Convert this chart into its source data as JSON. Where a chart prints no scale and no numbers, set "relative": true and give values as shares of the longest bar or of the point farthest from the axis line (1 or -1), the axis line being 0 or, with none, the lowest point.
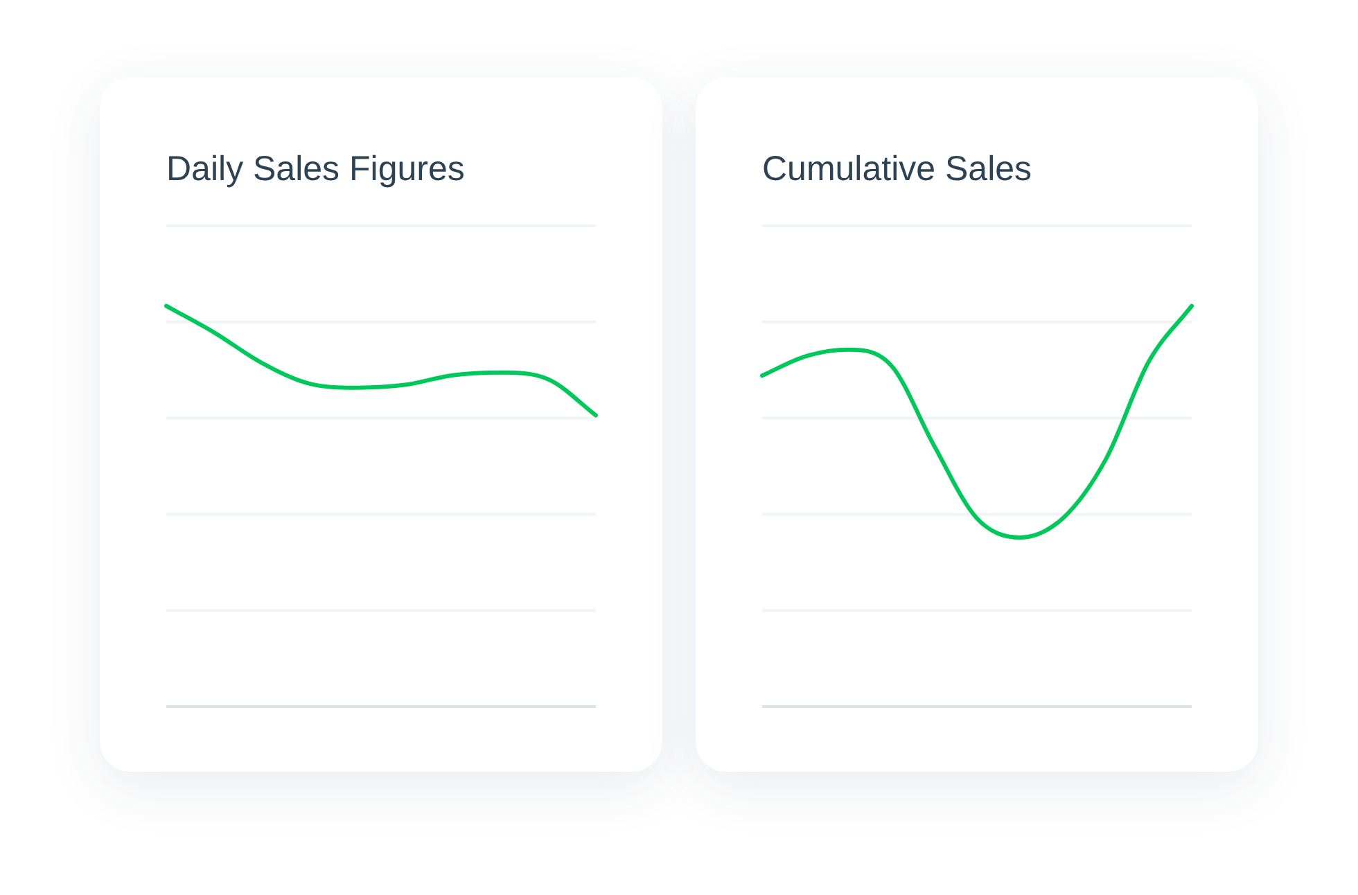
{
  "chart_data": [
    {
      "type": "line",
      "title": "Daily Sales Figures",
      "relative": true,
      "grid": true,
      "legend": false,
      "marker": "none",
      "line_style": "solid",
      "categories": [
        null,
        null,
        null,
        null,
        null,
        null,
        null,
        null,
        null,
        null
      ],
      "series": [
        {
          "color": "#00c85a",
          "values": [
            1,
            0.934,
            0.858,
            0.806,
            0.796,
            0.803,
            0.827,
            0.834,
            0.817,
            0.727
          ]
        }
      ]
    },
    {
      "type": "line",
      "title": "Cumulative Sales",
      "relative": true,
      "grid": true,
      "legend": false,
      "marker": "none",
      "line_style": "solid",
      "categories": [
        null,
        null,
        null,
        null,
        null,
        null,
        null,
        null,
        null,
        null,
        null
      ],
      "series": [
        {
          "color": "#00c85a",
          "values": [
            0.826,
            0.874,
            0.891,
            0.852,
            0.652,
            0.47,
            0.422,
            0.47,
            0.617,
            0.861,
            1
          ]
        }
      ]
    }
  ]
}
